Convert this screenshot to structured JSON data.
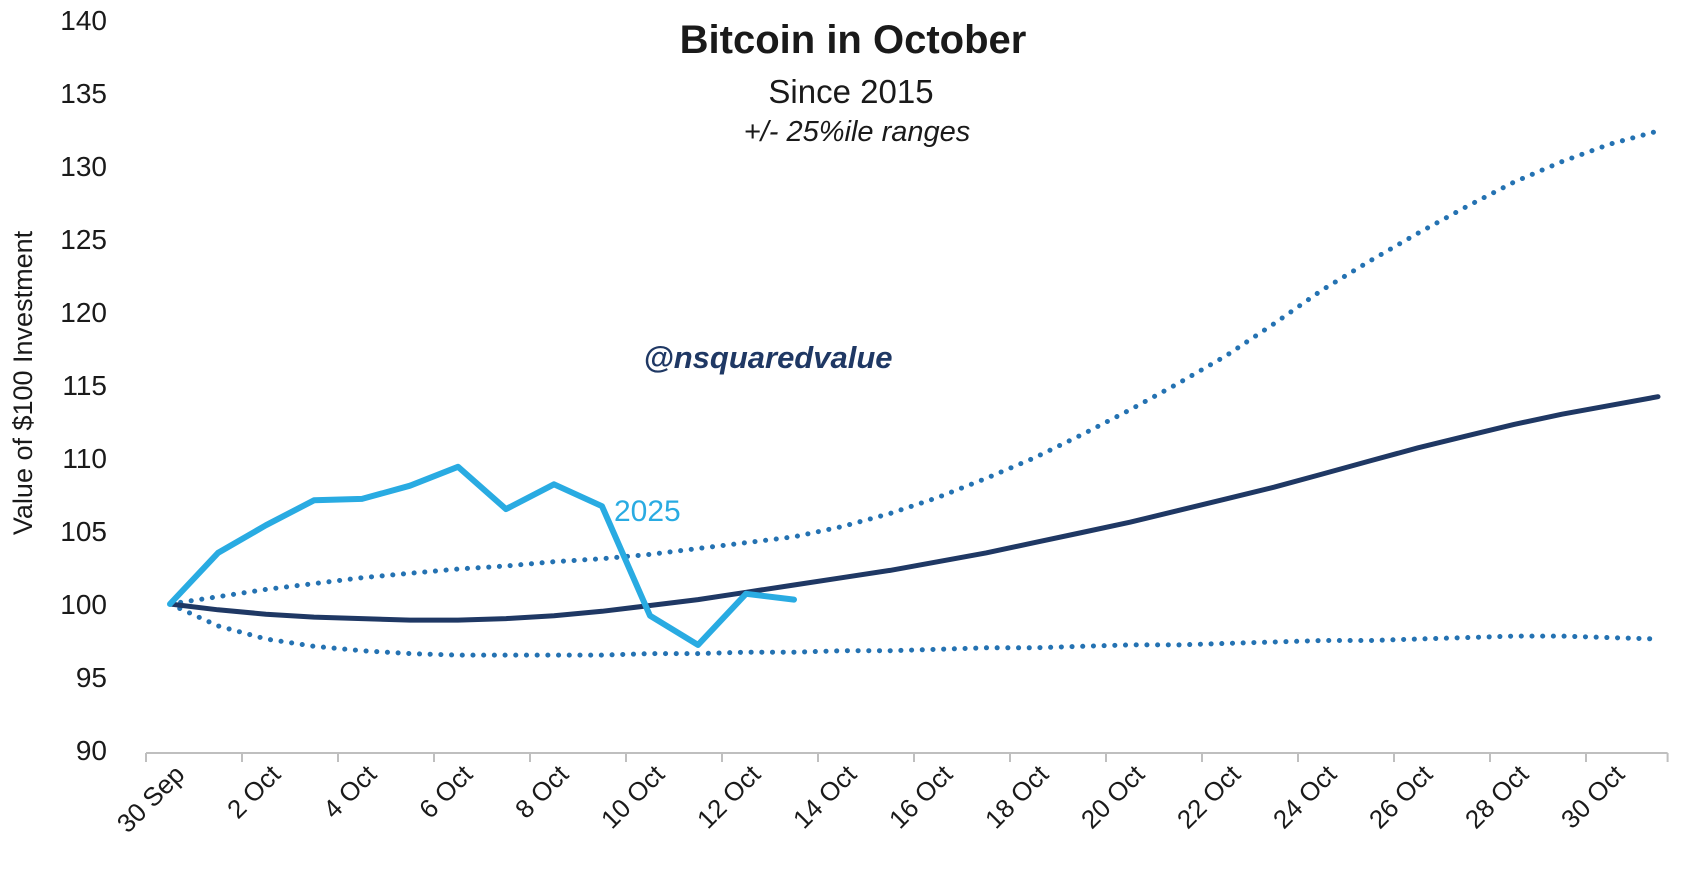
{
  "header": {
    "title": "Bitcoin in October",
    "subtitle": "Since 2015",
    "note": "+/- 25%ile ranges"
  },
  "watermark": "@nsquaredvalue",
  "labels": {
    "series_2025": "2025",
    "y_axis_title": "Value of $100 Investment"
  },
  "colors": {
    "cyan": "#29ABE2",
    "navy": "#1F3864",
    "dotted_blue": "#2472B2",
    "axis_gray": "#BFBFBF",
    "text": "#1a1a1a"
  },
  "chart_data": {
    "type": "line",
    "title": "Bitcoin in October",
    "subtitle": "Since 2015",
    "annotation": "+/- 25%ile ranges",
    "watermark": "@nsquaredvalue",
    "ylabel": "Value of $100 Investment",
    "ylim": [
      90,
      140
    ],
    "y_ticks": [
      90,
      95,
      100,
      105,
      110,
      115,
      120,
      125,
      130,
      135,
      140
    ],
    "grid": false,
    "legend_position": "none (inline series label '2025')",
    "x_unit": "calendar day, 30 Sep = day 0",
    "x_range_days": [
      0,
      31
    ],
    "x_tick_days": [
      0,
      2,
      4,
      6,
      8,
      10,
      12,
      14,
      16,
      18,
      20,
      22,
      24,
      26,
      28,
      30
    ],
    "x_tick_labels": [
      "30 Sep",
      "2 Oct",
      "4 Oct",
      "6 Oct",
      "8 Oct",
      "10 Oct",
      "12 Oct",
      "14 Oct",
      "16 Oct",
      "18 Oct",
      "20 Oct",
      "22 Oct",
      "24 Oct",
      "26 Oct",
      "28 Oct",
      "30 Oct"
    ],
    "series": [
      {
        "id": "upper-quartile",
        "name": "+25%ile range (upper band, since 2015)",
        "style": "dotted",
        "color": "#2472B2",
        "width": 5,
        "values": [
          100.0,
          100.5,
          101.0,
          101.4,
          101.8,
          102.1,
          102.4,
          102.6,
          102.9,
          103.1,
          103.4,
          103.8,
          104.2,
          104.6,
          105.3,
          106.2,
          107.3,
          108.6,
          110.0,
          111.6,
          113.3,
          115.1,
          117.0,
          119.2,
          121.5,
          123.5,
          125.4,
          127.2,
          128.9,
          130.3,
          131.5,
          132.4
        ]
      },
      {
        "id": "lower-quartile",
        "name": "-25%ile range (lower band, since 2015)",
        "style": "dotted",
        "color": "#2472B2",
        "width": 5,
        "values": [
          100.0,
          98.5,
          97.6,
          97.1,
          96.8,
          96.6,
          96.5,
          96.5,
          96.5,
          96.5,
          96.6,
          96.6,
          96.7,
          96.7,
          96.8,
          96.8,
          96.9,
          97.0,
          97.0,
          97.1,
          97.2,
          97.2,
          97.3,
          97.4,
          97.5,
          97.5,
          97.6,
          97.7,
          97.8,
          97.8,
          97.7,
          97.6
        ]
      },
      {
        "id": "median",
        "name": "Median value of $100 (since 2015)",
        "style": "solid",
        "color": "#1F3864",
        "width": 5,
        "values": [
          100.0,
          99.6,
          99.3,
          99.1,
          99.0,
          98.9,
          98.9,
          99.0,
          99.2,
          99.5,
          99.9,
          100.3,
          100.8,
          101.3,
          101.8,
          102.3,
          102.9,
          103.5,
          104.2,
          104.9,
          105.6,
          106.4,
          107.2,
          108.0,
          108.9,
          109.8,
          110.7,
          111.5,
          112.3,
          113.0,
          113.6,
          114.2
        ]
      },
      {
        "id": "y2025",
        "name": "2025",
        "style": "solid",
        "color": "#29ABE2",
        "width": 6,
        "days": [
          0,
          1,
          2,
          3,
          4,
          5,
          6,
          7,
          8,
          9,
          10,
          11,
          12,
          13
        ],
        "values": [
          100.0,
          103.5,
          105.4,
          107.1,
          107.2,
          108.1,
          109.4,
          106.5,
          108.2,
          106.7,
          99.2,
          97.2,
          100.7,
          100.3
        ]
      }
    ]
  }
}
